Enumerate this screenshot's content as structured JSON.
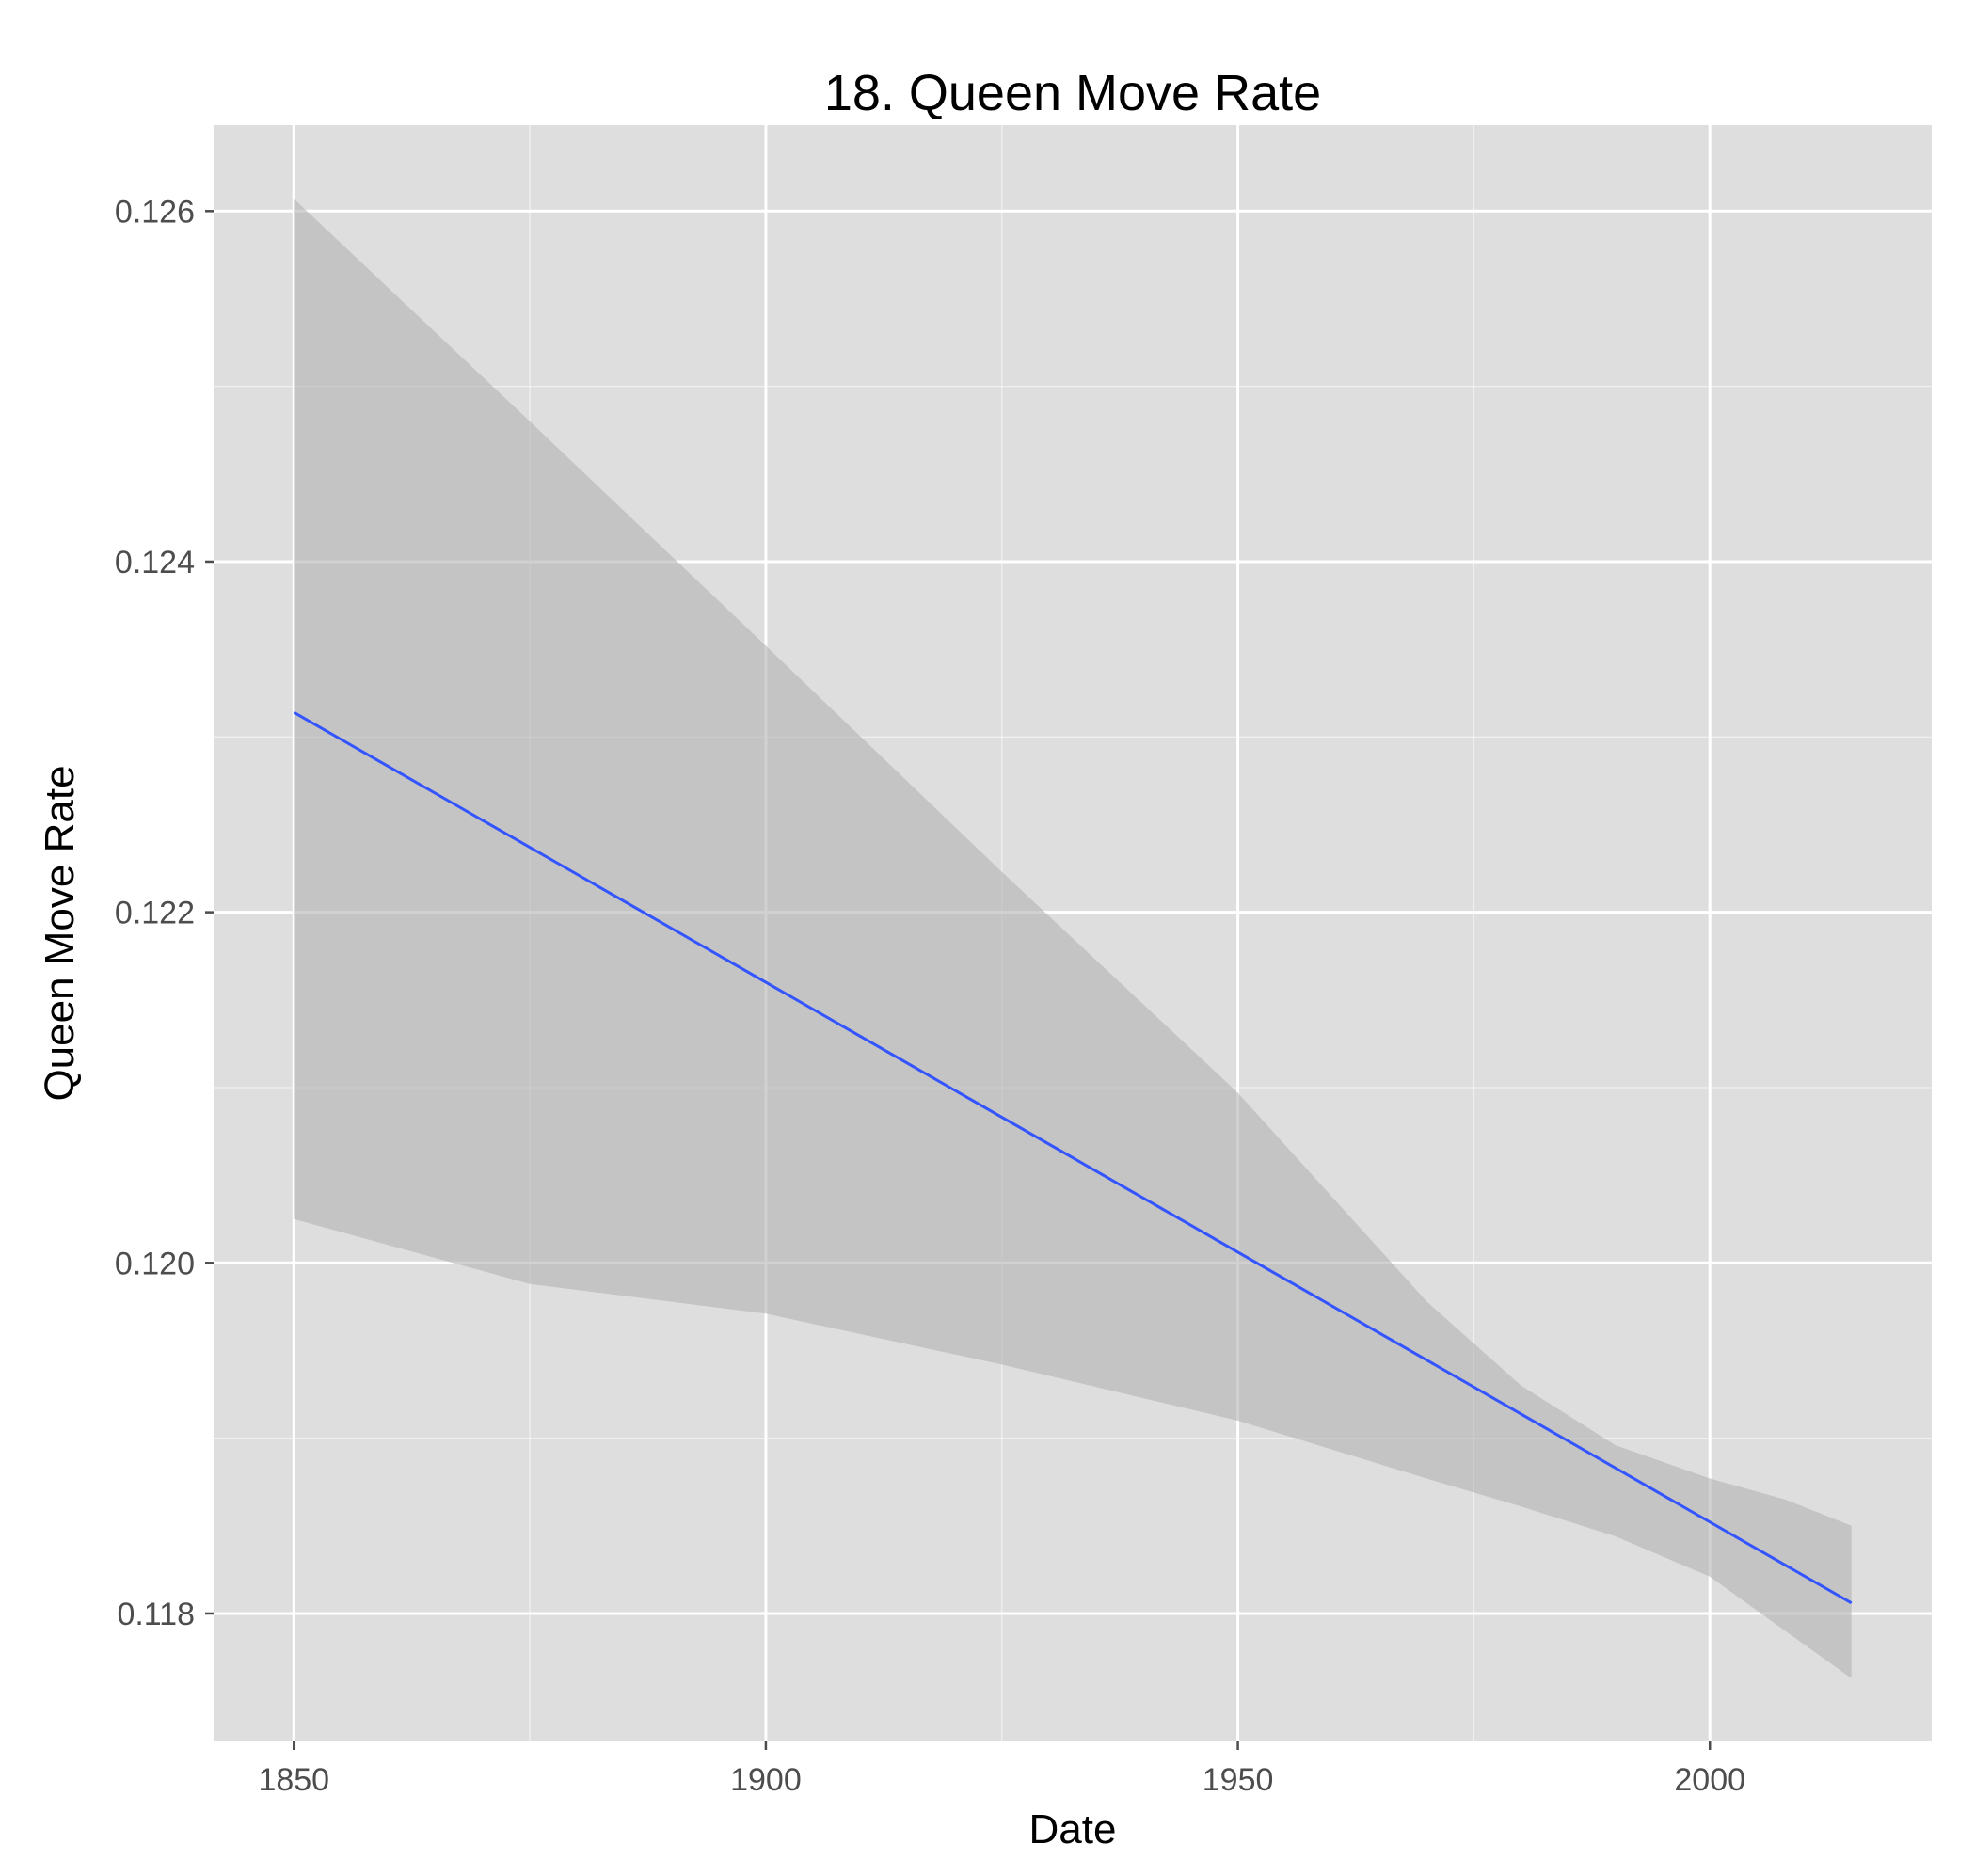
{
  "chart_data": {
    "type": "line",
    "title": "18. Queen Move Rate",
    "xlabel": "Date",
    "ylabel": "Queen Move Rate",
    "xlim": [
      1841.5,
      2023.5
    ],
    "ylim": [
      0.11727,
      0.12649
    ],
    "x_ticks": [
      1850,
      1900,
      1950,
      2000
    ],
    "x_tick_labels": [
      "1850",
      "1900",
      "1950",
      "2000"
    ],
    "x_minor_ticks": [
      1875,
      1925,
      1975
    ],
    "y_ticks": [
      0.118,
      0.12,
      0.122,
      0.124,
      0.126
    ],
    "y_tick_labels": [
      "0.118",
      "0.120",
      "0.122",
      "0.124",
      "0.126"
    ],
    "y_minor_ticks": [
      0.119,
      0.121,
      0.123,
      0.125
    ],
    "grid": true,
    "legend": "none",
    "colors": {
      "panel_background": "#dedede",
      "grid_line": "#ffffff",
      "fit_line": "#3354ff",
      "ribbon": "#b3b3b3"
    },
    "series": [
      {
        "kind": "fit_line",
        "x": [
          1850,
          2015
        ],
        "y": [
          0.12314,
          0.11806
        ]
      }
    ],
    "confidence_band": {
      "x": [
        1850,
        1875,
        1900,
        1925,
        1950,
        1970,
        1980,
        1990,
        2000,
        2008,
        2015
      ],
      "upper": [
        0.12607,
        0.1248,
        0.12352,
        0.12223,
        0.12097,
        0.11978,
        0.1193,
        0.11896,
        0.11877,
        0.11865,
        0.1185
      ],
      "lower": [
        0.12025,
        0.11988,
        0.11971,
        0.11942,
        0.1191,
        0.11877,
        0.11861,
        0.11844,
        0.11821,
        0.1179,
        0.11763
      ]
    }
  }
}
